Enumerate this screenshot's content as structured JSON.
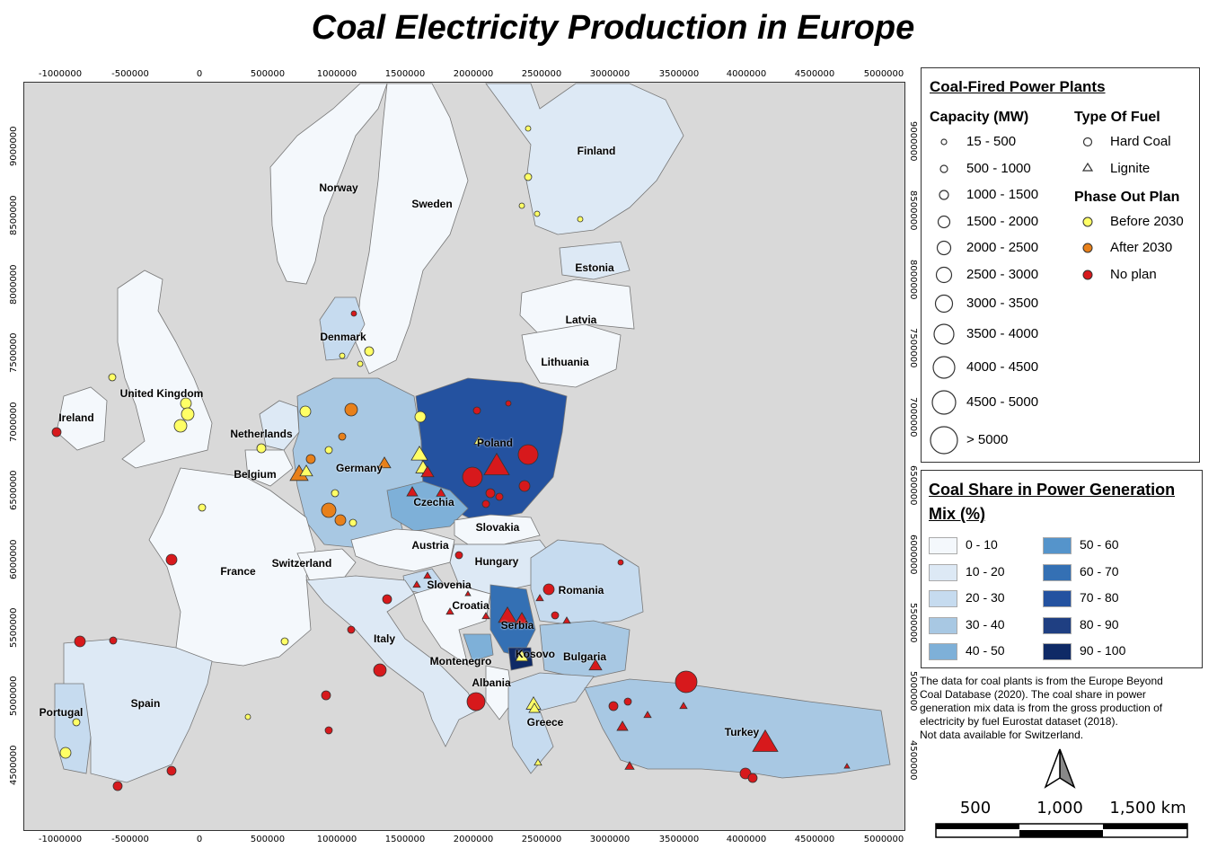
{
  "title": "Coal Electricity Production in Europe",
  "axes": {
    "x_ticks": [
      "-1000000",
      "-500000",
      "0",
      "500000",
      "1000000",
      "1500000",
      "2000000",
      "2500000",
      "3000000",
      "3500000",
      "4000000",
      "4500000",
      "5000000"
    ],
    "y_ticks": [
      "9000000",
      "8500000",
      "8000000",
      "7500000",
      "7000000",
      "6500000",
      "6000000",
      "5500000",
      "5000000",
      "4500000"
    ]
  },
  "map": {
    "ocean_color": "#d9d9d9",
    "countries": [
      {
        "name": "Norway",
        "share": "0-10"
      },
      {
        "name": "Sweden",
        "share": "0-10"
      },
      {
        "name": "Finland",
        "share": "10-20"
      },
      {
        "name": "Estonia",
        "share": "10-20"
      },
      {
        "name": "Latvia",
        "share": "0-10"
      },
      {
        "name": "Lithuania",
        "share": "0-10"
      },
      {
        "name": "Denmark",
        "share": "20-30"
      },
      {
        "name": "United Kingdom",
        "share": "0-10"
      },
      {
        "name": "Ireland",
        "share": "0-10"
      },
      {
        "name": "Netherlands",
        "share": "10-20"
      },
      {
        "name": "Belgium",
        "share": "0-10"
      },
      {
        "name": "Germany",
        "share": "30-40"
      },
      {
        "name": "Poland",
        "share": "70-80"
      },
      {
        "name": "Czechia",
        "share": "40-50"
      },
      {
        "name": "Slovakia",
        "share": "0-10"
      },
      {
        "name": "Austria",
        "share": "0-10"
      },
      {
        "name": "Hungary",
        "share": "10-20"
      },
      {
        "name": "France",
        "share": "0-10"
      },
      {
        "name": "Switzerland",
        "share": "0-10"
      },
      {
        "name": "Slovenia",
        "share": "20-30"
      },
      {
        "name": "Croatia",
        "share": "0-10"
      },
      {
        "name": "Serbia",
        "share": "60-70"
      },
      {
        "name": "Romania",
        "share": "20-30"
      },
      {
        "name": "Bulgaria",
        "share": "30-40"
      },
      {
        "name": "Montenegro",
        "share": "40-50"
      },
      {
        "name": "Kosovo",
        "share": "90-100"
      },
      {
        "name": "Albania",
        "share": "0-10"
      },
      {
        "name": "Greece",
        "share": "20-30"
      },
      {
        "name": "Italy",
        "share": "10-20"
      },
      {
        "name": "Spain",
        "share": "10-20"
      },
      {
        "name": "Portugal",
        "share": "20-30"
      },
      {
        "name": "Turkey",
        "share": "30-40"
      }
    ]
  },
  "legend_plants": {
    "title": "Coal-Fired Power Plants",
    "capacity_head": "Capacity (MW)",
    "capacity": [
      "15 - 500",
      "500 - 1000",
      "1000 - 1500",
      "1500 - 2000",
      "2000 - 2500",
      "2500 - 3000",
      "3000 - 3500",
      "3500 - 4000",
      "4000 - 4500",
      "4500 - 5000",
      "> 5000"
    ],
    "fuel_head": "Type Of Fuel",
    "fuel": [
      "Hard Coal",
      "Lignite"
    ],
    "phase_head": "Phase Out Plan",
    "phase": [
      {
        "label": "Before 2030",
        "color": "#ffff66"
      },
      {
        "label": "After 2030",
        "color": "#e8801a"
      },
      {
        "label": "No plan",
        "color": "#d7191c"
      }
    ]
  },
  "legend_share": {
    "title_line1": "Coal Share in Power Generation",
    "title_line2": "Mix (%)",
    "classes": [
      {
        "label": "0 - 10",
        "color": "#f4f8fc"
      },
      {
        "label": "10 - 20",
        "color": "#dde9f5"
      },
      {
        "label": "20 - 30",
        "color": "#c6dbef"
      },
      {
        "label": "30 - 40",
        "color": "#a8c8e3"
      },
      {
        "label": "40 - 50",
        "color": "#7eb0d8"
      },
      {
        "label": "50 - 60",
        "color": "#5594cb"
      },
      {
        "label": "60 - 70",
        "color": "#3470b4"
      },
      {
        "label": "70 - 80",
        "color": "#2452a0"
      },
      {
        "label": "80 - 90",
        "color": "#1f3f82"
      },
      {
        "label": "90 - 100",
        "color": "#0f2a66"
      }
    ]
  },
  "note": [
    "The data for coal plants is from the Europe Beyond",
    "Coal Database (2020). The coal share in power",
    "generation mix data is from the gross production of",
    "electricity by fuel Eurostat dataset (2018).",
    "Not data available for Switzerland."
  ],
  "scalebar": {
    "labels": [
      "500",
      "1,000",
      "1,500 km"
    ]
  }
}
